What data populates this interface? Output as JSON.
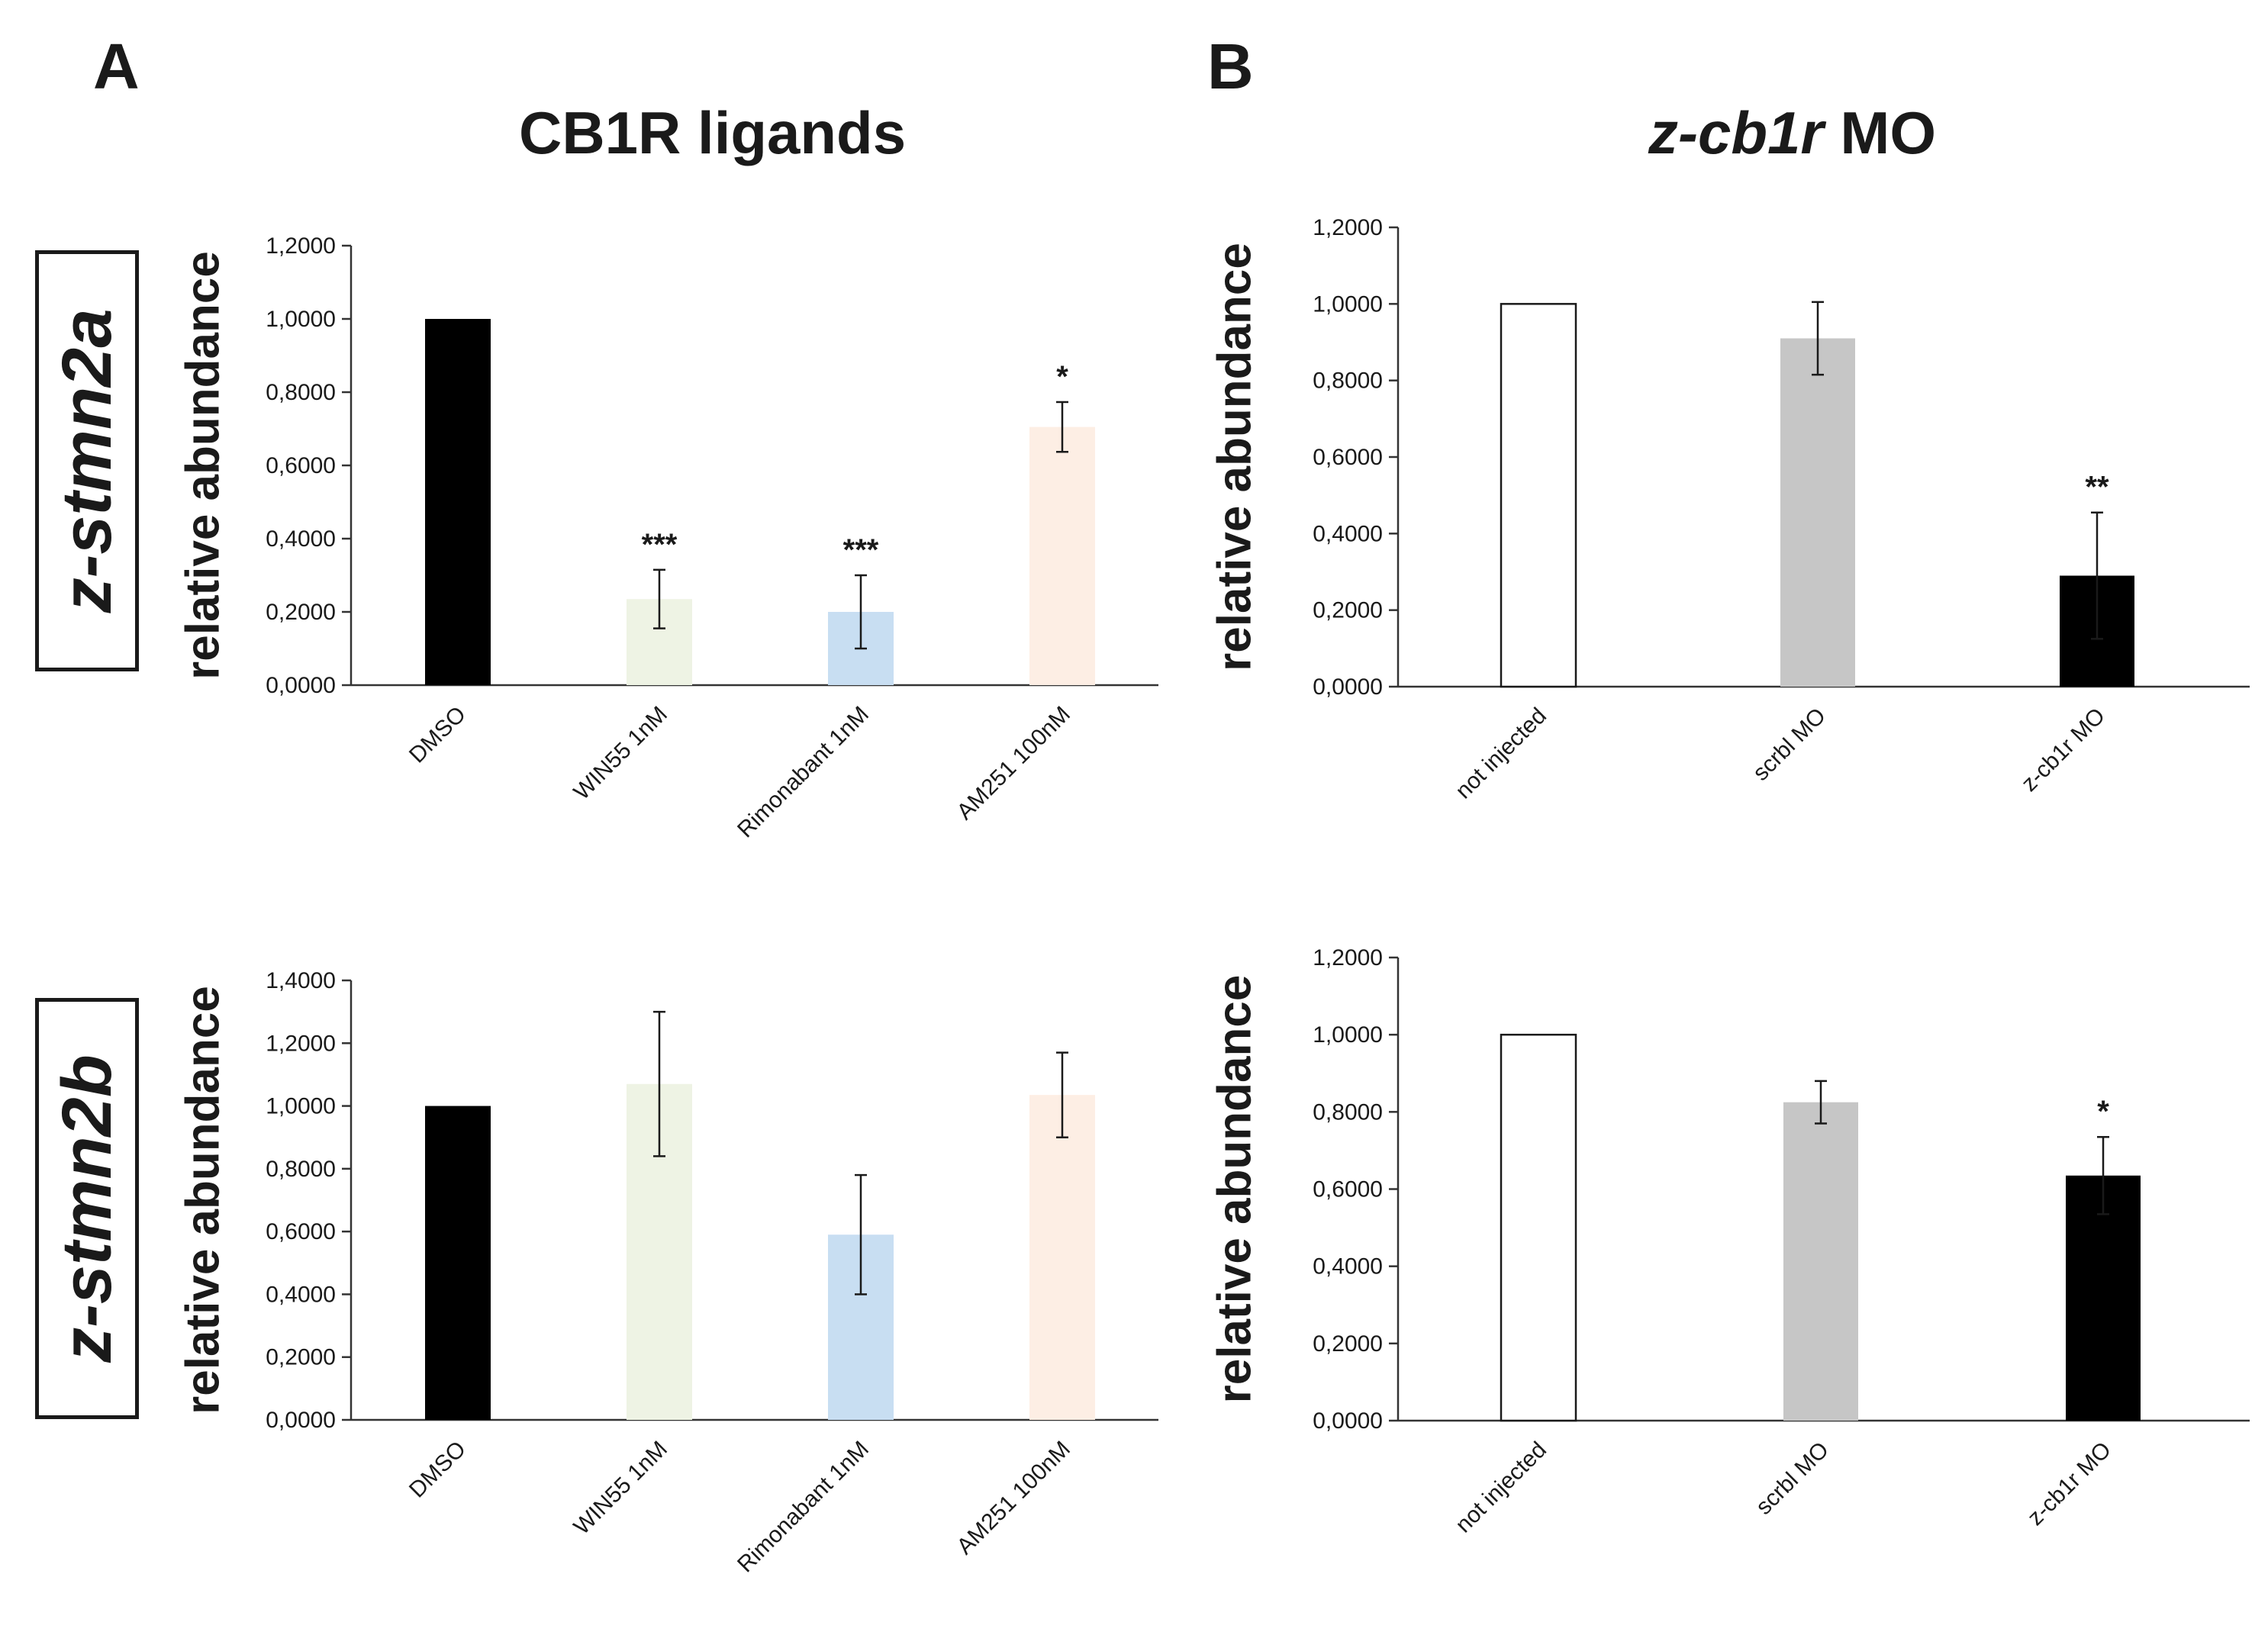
{
  "panels": {
    "a": {
      "letter": "A",
      "title": "CB1R ligands"
    },
    "b": {
      "letter": "B",
      "title_italic": "z-cb1r",
      "title_rest": " MO"
    }
  },
  "genes": {
    "row1": "z-stmn2a",
    "row2": "z-stmn2b"
  },
  "chart_data": [
    {
      "id": "a-top",
      "type": "bar",
      "panel": "A",
      "gene": "z-stmn2a",
      "ylabel": "relative abundance",
      "ylim": [
        0,
        1.2
      ],
      "yticks": [
        "0,0000",
        "0,2000",
        "0,4000",
        "0,6000",
        "0,8000",
        "1,0000",
        "1,2000"
      ],
      "categories": [
        "DMSO",
        "WIN55 1nM",
        "Rimonabant 1nM",
        "AM251 100nM"
      ],
      "values": [
        1.0,
        0.235,
        0.2,
        0.705
      ],
      "errors": [
        0,
        0.08,
        0.1,
        0.068
      ],
      "significance": [
        "",
        "***",
        "***",
        "*"
      ],
      "colors": [
        "#000000",
        "#eef3e4",
        "#c8def2",
        "#fdeee4"
      ]
    },
    {
      "id": "b-top",
      "type": "bar",
      "panel": "B",
      "gene": "z-stmn2a",
      "ylabel": "relative abundance",
      "ylim": [
        0,
        1.2
      ],
      "yticks": [
        "0,0000",
        "0,2000",
        "0,4000",
        "0,6000",
        "0,8000",
        "1,0000",
        "1,2000"
      ],
      "categories": [
        "not injected",
        "scrbl MO",
        "z-cb1r MO"
      ],
      "values": [
        1.0,
        0.91,
        0.29
      ],
      "errors": [
        0,
        0.095,
        0.165
      ],
      "significance": [
        "",
        "",
        "**"
      ],
      "colors": [
        "#ffffff",
        "#c6c6c6",
        "#000000"
      ]
    },
    {
      "id": "a-bottom",
      "type": "bar",
      "panel": "A",
      "gene": "z-stmn2b",
      "ylabel": "relative abundance",
      "ylim": [
        0,
        1.4
      ],
      "yticks": [
        "0,0000",
        "0,2000",
        "0,4000",
        "0,6000",
        "0,8000",
        "1,0000",
        "1,2000",
        "1,4000"
      ],
      "categories": [
        "DMSO",
        "WIN55 1nM",
        "Rimonabant 1nM",
        "AM251 100nM"
      ],
      "values": [
        1.0,
        1.07,
        0.59,
        1.035
      ],
      "errors": [
        0,
        0.23,
        0.19,
        0.135
      ],
      "significance": [
        "",
        "",
        "",
        ""
      ],
      "colors": [
        "#000000",
        "#eef3e4",
        "#c8def2",
        "#fdeee4"
      ]
    },
    {
      "id": "b-bottom",
      "type": "bar",
      "panel": "B",
      "gene": "z-stmn2b",
      "ylabel": "relative abundance",
      "ylim": [
        0,
        1.2
      ],
      "yticks": [
        "0,0000",
        "0,2000",
        "0,4000",
        "0,6000",
        "0,8000",
        "1,0000",
        "1,2000"
      ],
      "categories": [
        "not injected",
        "scrbl MO",
        "z-cb1r MO"
      ],
      "values": [
        1.0,
        0.825,
        0.635
      ],
      "errors": [
        0,
        0.055,
        0.1
      ],
      "significance": [
        "",
        "",
        "*"
      ],
      "colors": [
        "#ffffff",
        "#c6c6c6",
        "#000000"
      ]
    }
  ]
}
